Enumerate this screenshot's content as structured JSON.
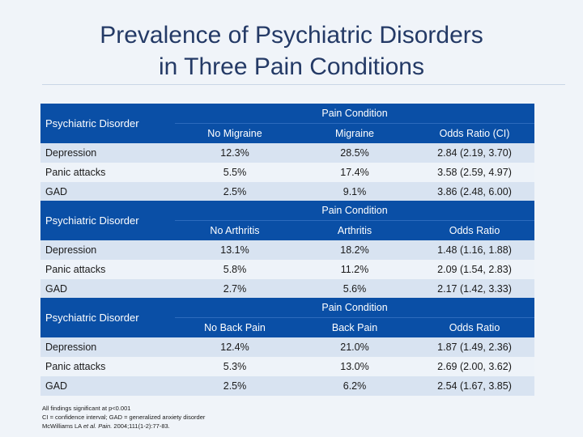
{
  "title_line1": "Prevalence of Psychiatric Disorders",
  "title_line2": "in Three Pain Conditions",
  "tables": [
    {
      "disorder_header": "Psychiatric Disorder",
      "group_header": "Pain Condition",
      "columns": [
        "No Migraine",
        "Migraine",
        "Odds Ratio (CI)"
      ],
      "rows": [
        {
          "label": "Depression",
          "values": [
            "12.3%",
            "28.5%",
            "2.84 (2.19, 3.70)"
          ]
        },
        {
          "label": "Panic attacks",
          "values": [
            "5.5%",
            "17.4%",
            "3.58 (2.59, 4.97)"
          ]
        },
        {
          "label": "GAD",
          "values": [
            "2.5%",
            "9.1%",
            "3.86 (2.48, 6.00)"
          ]
        }
      ]
    },
    {
      "disorder_header": "Psychiatric Disorder",
      "group_header": "Pain Condition",
      "columns": [
        "No Arthritis",
        "Arthritis",
        "Odds Ratio"
      ],
      "rows": [
        {
          "label": "Depression",
          "values": [
            "13.1%",
            "18.2%",
            "1.48 (1.16, 1.88)"
          ]
        },
        {
          "label": "Panic attacks",
          "values": [
            "5.8%",
            "11.2%",
            "2.09 (1.54, 2.83)"
          ]
        },
        {
          "label": "GAD",
          "values": [
            "2.7%",
            "5.6%",
            "2.17 (1.42, 3.33)"
          ]
        }
      ]
    },
    {
      "disorder_header": "Psychiatric Disorder",
      "group_header": "Pain Condition",
      "columns": [
        "No Back Pain",
        "Back Pain",
        "Odds Ratio"
      ],
      "rows": [
        {
          "label": "Depression",
          "values": [
            "12.4%",
            "21.0%",
            "1.87 (1.49, 2.36)"
          ]
        },
        {
          "label": "Panic attacks",
          "values": [
            "5.3%",
            "13.0%",
            "2.69 (2.00, 3.62)"
          ]
        },
        {
          "label": "GAD",
          "values": [
            "2.5%",
            "6.2%",
            "2.54 (1.67, 3.85)"
          ]
        }
      ]
    }
  ],
  "footnote": {
    "line1": "All findings significant at p<0.001",
    "line2": "CI = confidence interval; GAD = generalized anxiety disorder",
    "line3_authors": "McWilliams LA ",
    "line3_etal": "et al.",
    "line3_space": " ",
    "line3_journal": "Pain.",
    "line3_rest": " 2004;111(1-2):77-83."
  }
}
